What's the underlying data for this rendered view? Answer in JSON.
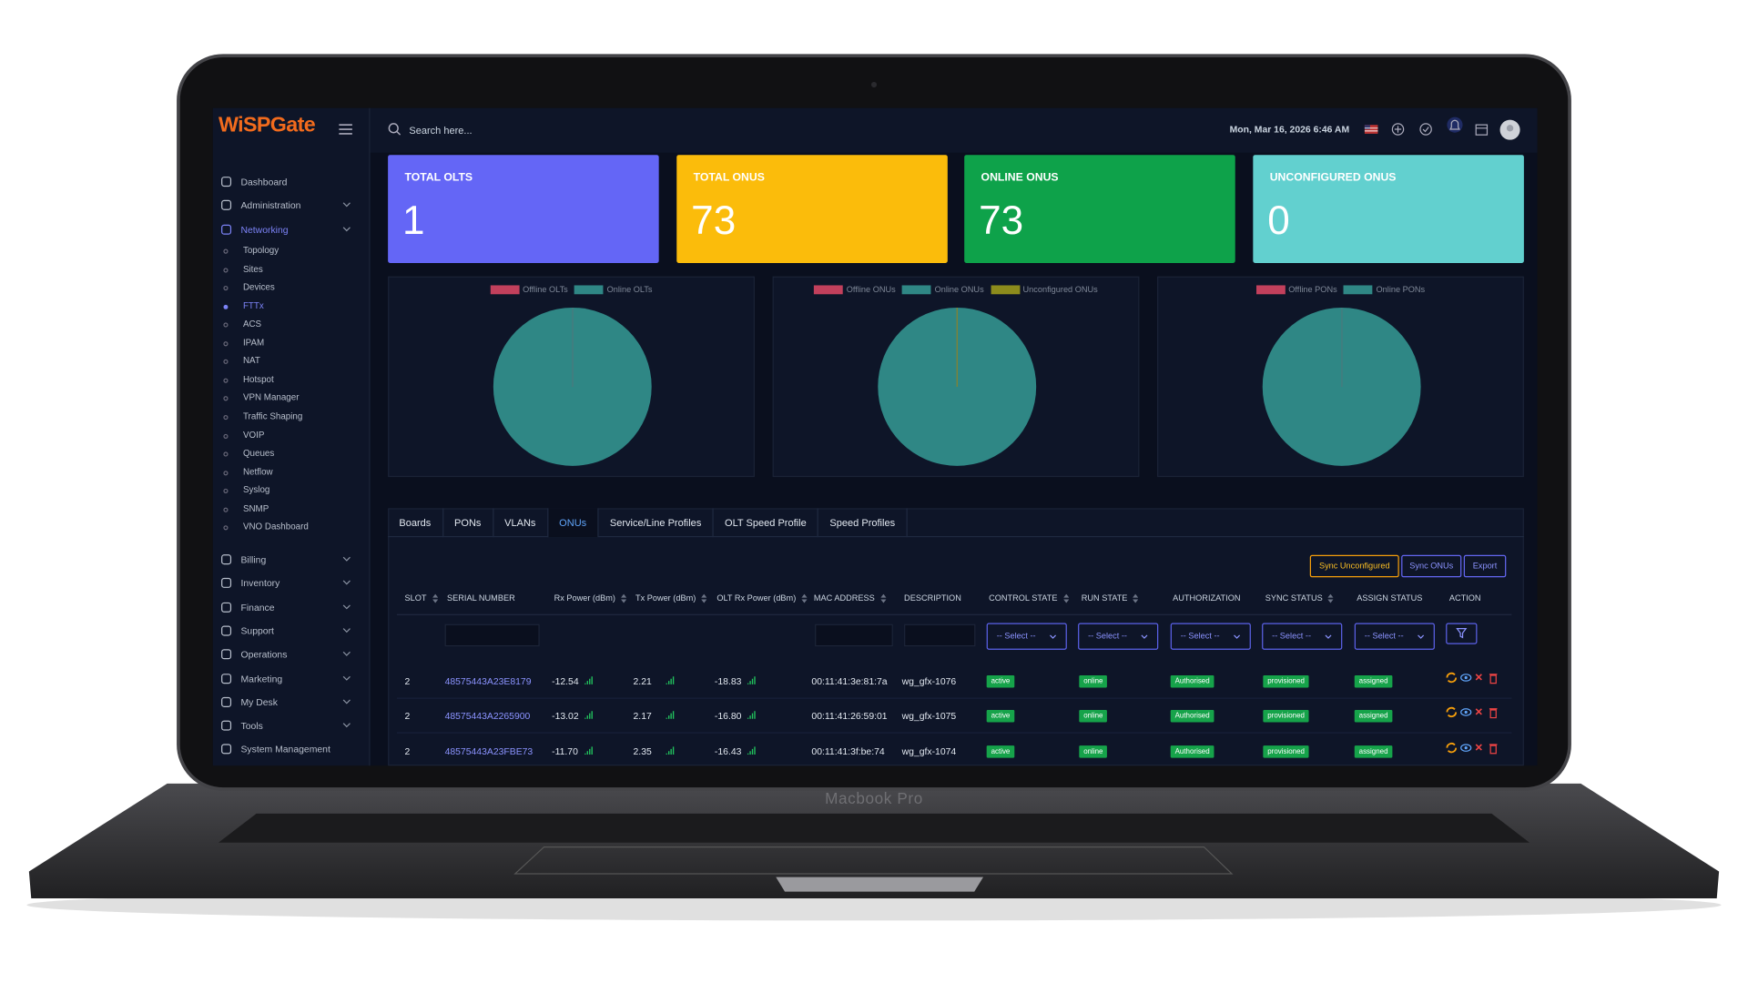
{
  "header": {
    "logo": "WiSPGate",
    "search_placeholder": "Search here...",
    "datetime": "Mon, Mar 16, 2026 6:46 AM"
  },
  "sidebar": {
    "items": [
      {
        "label": "Dashboard",
        "expandable": false
      },
      {
        "label": "Administration",
        "expandable": true
      },
      {
        "label": "Networking",
        "expandable": true,
        "active": true,
        "children": [
          "Topology",
          "Sites",
          "Devices",
          "FTTx",
          "ACS",
          "IPAM",
          "NAT",
          "Hotspot",
          "VPN Manager",
          "Traffic Shaping",
          "VOIP",
          "Queues",
          "Netflow",
          "Syslog",
          "SNMP",
          "VNO Dashboard"
        ],
        "active_child": 3
      },
      {
        "label": "Billing",
        "expandable": true
      },
      {
        "label": "Inventory",
        "expandable": true
      },
      {
        "label": "Finance",
        "expandable": true
      },
      {
        "label": "Support",
        "expandable": true
      },
      {
        "label": "Operations",
        "expandable": true
      },
      {
        "label": "Marketing",
        "expandable": true
      },
      {
        "label": "My Desk",
        "expandable": true
      },
      {
        "label": "Tools",
        "expandable": true
      },
      {
        "label": "System Management",
        "expandable": false
      }
    ]
  },
  "cards": [
    {
      "title": "TOTAL OLTS",
      "value": "1",
      "color": "#6466f6"
    },
    {
      "title": "TOTAL ONUS",
      "value": "73",
      "color": "#fbbc0b"
    },
    {
      "title": "ONLINE ONUS",
      "value": "73",
      "color": "#0ea24a"
    },
    {
      "title": "UNCONFIGURED ONUS",
      "value": "0",
      "color": "#62d0cf"
    }
  ],
  "chart_data": [
    {
      "type": "pie",
      "categories": [
        "Offline OLTs",
        "Online OLTs"
      ],
      "values": [
        0,
        1
      ],
      "colors": [
        "#c2405c",
        "#2f8785"
      ]
    },
    {
      "type": "pie",
      "categories": [
        "Offline ONUs",
        "Online ONUs",
        "Unconfigured ONUs"
      ],
      "values": [
        0,
        73,
        0
      ],
      "colors": [
        "#c2405c",
        "#2f8785",
        "#8c8b1c"
      ]
    },
    {
      "type": "pie",
      "categories": [
        "Offline PONs",
        "Online PONs"
      ],
      "values": [
        0,
        100
      ],
      "colors": [
        "#c2405c",
        "#2f8785"
      ]
    }
  ],
  "tabs": {
    "items": [
      "Boards",
      "PONs",
      "VLANs",
      "ONUs",
      "Service/Line Profiles",
      "OLT Speed Profile",
      "Speed Profiles"
    ],
    "active": 3
  },
  "buttons": [
    "Sync Unconfigured",
    "Sync ONUs",
    "Export"
  ],
  "table": {
    "columns": [
      "SLOT",
      "SERIAL NUMBER",
      "Rx Power (dBm)",
      "Tx Power (dBm)",
      "OLT Rx Power (dBm)",
      "MAC ADDRESS",
      "DESCRIPTION",
      "CONTROL STATE",
      "RUN STATE",
      "AUTHORIZATION",
      "SYNC STATUS",
      "ASSIGN STATUS",
      "ACTION"
    ],
    "sortable": [
      true,
      false,
      true,
      true,
      true,
      true,
      false,
      true,
      true,
      false,
      true,
      false,
      false
    ],
    "select_placeholder": "-- Select --",
    "rows": [
      [
        "2",
        "48575443A23E8179",
        "-12.54",
        "2.21",
        "-18.83",
        "00:11:41:3e:81:7a",
        "wg_gfx-1076",
        "active",
        "online",
        "Authorised",
        "provisioned",
        "assigned"
      ],
      [
        "2",
        "48575443A2265900",
        "-13.02",
        "2.17",
        "-16.80",
        "00:11:41:26:59:01",
        "wg_gfx-1075",
        "active",
        "online",
        "Authorised",
        "provisioned",
        "assigned"
      ],
      [
        "2",
        "48575443A23FBE73",
        "-11.70",
        "2.35",
        "-16.43",
        "00:11:41:3f:be:74",
        "wg_gfx-1074",
        "active",
        "online",
        "Authorised",
        "provisioned",
        "assigned"
      ]
    ]
  },
  "device": {
    "label": "Macbook Pro"
  }
}
